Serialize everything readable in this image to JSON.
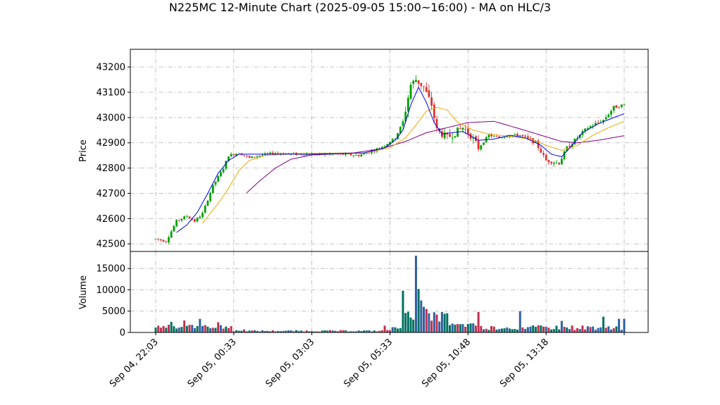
{
  "chart_data": {
    "type": "candlestick",
    "title": "N225MC 12-Minute Chart (2025-09-05 15:00~16:00) - MA on HLC/3",
    "price_axis": {
      "ylabel": "Price",
      "ylim": [
        42470,
        43270
      ],
      "ticks": [
        42500,
        42600,
        42700,
        42800,
        42900,
        43000,
        43100,
        43200
      ]
    },
    "volume_axis": {
      "ylabel": "Volume",
      "ylim": [
        0,
        19000
      ],
      "ticks": [
        0,
        5000,
        10000,
        15000
      ]
    },
    "x_axis": {
      "count": 180,
      "tick_labels": [
        {
          "index": 0,
          "label": "Sep 04, 22:03"
        },
        {
          "index": 30,
          "label": "Sep 05, 00:33"
        },
        {
          "index": 60,
          "label": "Sep 05, 03:03"
        },
        {
          "index": 90,
          "label": "Sep 05, 05:33"
        },
        {
          "index": 120,
          "label": "Sep 05, 10:48"
        },
        {
          "index": 150,
          "label": "Sep 05, 13:18"
        },
        {
          "index": 180,
          "label": ""
        }
      ]
    },
    "grid": true,
    "colors": {
      "up": "#00a000",
      "down": "#e03030",
      "ma_fast": "#0000ee",
      "ma_mid": "#f0a800",
      "ma_slow": "#800080",
      "vol_up": "#007060",
      "vol_down": "#c03050",
      "vol_other": "#3060a0"
    },
    "anchors": [
      [
        0,
        42520
      ],
      [
        4,
        42510
      ],
      [
        6,
        42550
      ],
      [
        8,
        42590
      ],
      [
        12,
        42610
      ],
      [
        15,
        42590
      ],
      [
        18,
        42620
      ],
      [
        22,
        42730
      ],
      [
        26,
        42800
      ],
      [
        28,
        42850
      ],
      [
        32,
        42860
      ],
      [
        36,
        42840
      ],
      [
        40,
        42850
      ],
      [
        46,
        42860
      ],
      [
        54,
        42855
      ],
      [
        62,
        42855
      ],
      [
        70,
        42855
      ],
      [
        78,
        42850
      ],
      [
        84,
        42870
      ],
      [
        88,
        42890
      ],
      [
        92,
        42920
      ],
      [
        95,
        42980
      ],
      [
        98,
        43130
      ],
      [
        100,
        43150
      ],
      [
        103,
        43120
      ],
      [
        106,
        43050
      ],
      [
        108,
        42950
      ],
      [
        112,
        42920
      ],
      [
        118,
        42960
      ],
      [
        121,
        42930
      ],
      [
        124,
        42880
      ],
      [
        128,
        42930
      ],
      [
        132,
        42920
      ],
      [
        136,
        42930
      ],
      [
        140,
        42930
      ],
      [
        146,
        42900
      ],
      [
        150,
        42830
      ],
      [
        155,
        42820
      ],
      [
        158,
        42880
      ],
      [
        162,
        42920
      ],
      [
        166,
        42960
      ],
      [
        172,
        42990
      ],
      [
        176,
        43040
      ],
      [
        180,
        43050
      ]
    ],
    "ma_fast": [
      [
        8,
        42545
      ],
      [
        12,
        42575
      ],
      [
        16,
        42625
      ],
      [
        20,
        42700
      ],
      [
        24,
        42780
      ],
      [
        28,
        42830
      ],
      [
        32,
        42855
      ],
      [
        40,
        42855
      ],
      [
        60,
        42855
      ],
      [
        80,
        42860
      ],
      [
        88,
        42880
      ],
      [
        92,
        42910
      ],
      [
        95,
        42950
      ],
      [
        98,
        43050
      ],
      [
        101,
        43120
      ],
      [
        104,
        43060
      ],
      [
        107,
        42980
      ],
      [
        110,
        42935
      ],
      [
        114,
        42940
      ],
      [
        118,
        42945
      ],
      [
        124,
        42910
      ],
      [
        130,
        42915
      ],
      [
        136,
        42930
      ],
      [
        142,
        42920
      ],
      [
        148,
        42890
      ],
      [
        152,
        42855
      ],
      [
        156,
        42845
      ],
      [
        160,
        42890
      ],
      [
        164,
        42940
      ],
      [
        170,
        42975
      ],
      [
        176,
        43000
      ],
      [
        180,
        43015
      ]
    ],
    "ma_mid": [
      [
        18,
        42582
      ],
      [
        24,
        42660
      ],
      [
        28,
        42720
      ],
      [
        32,
        42790
      ],
      [
        36,
        42830
      ],
      [
        42,
        42850
      ],
      [
        56,
        42858
      ],
      [
        80,
        42860
      ],
      [
        90,
        42880
      ],
      [
        96,
        42920
      ],
      [
        100,
        42970
      ],
      [
        104,
        43025
      ],
      [
        108,
        43040
      ],
      [
        112,
        43030
      ],
      [
        116,
        42980
      ],
      [
        122,
        42950
      ],
      [
        128,
        42935
      ],
      [
        136,
        42925
      ],
      [
        144,
        42915
      ],
      [
        150,
        42890
      ],
      [
        156,
        42870
      ],
      [
        162,
        42890
      ],
      [
        168,
        42930
      ],
      [
        174,
        42960
      ],
      [
        180,
        42985
      ]
    ],
    "ma_slow": [
      [
        35,
        42702
      ],
      [
        40,
        42750
      ],
      [
        46,
        42800
      ],
      [
        52,
        42835
      ],
      [
        60,
        42852
      ],
      [
        76,
        42860
      ],
      [
        86,
        42875
      ],
      [
        96,
        42905
      ],
      [
        104,
        42940
      ],
      [
        112,
        42960
      ],
      [
        120,
        42980
      ],
      [
        130,
        42985
      ],
      [
        140,
        42955
      ],
      [
        148,
        42930
      ],
      [
        156,
        42905
      ],
      [
        162,
        42900
      ],
      [
        170,
        42910
      ],
      [
        180,
        42928
      ]
    ],
    "volume_spikes": [
      [
        5,
        1800
      ],
      [
        6,
        2500
      ],
      [
        11,
        2800
      ],
      [
        17,
        3200
      ],
      [
        24,
        2400
      ],
      [
        34,
        700
      ],
      [
        88,
        1600
      ],
      [
        95,
        9800
      ],
      [
        98,
        3500
      ],
      [
        100,
        18000
      ],
      [
        101,
        10200
      ],
      [
        102,
        7500
      ],
      [
        103,
        6000
      ],
      [
        104,
        5500
      ],
      [
        105,
        4500
      ],
      [
        108,
        4200
      ],
      [
        110,
        4800
      ],
      [
        112,
        4500
      ],
      [
        124,
        4800
      ],
      [
        140,
        5000
      ],
      [
        156,
        2700
      ],
      [
        172,
        3700
      ],
      [
        178,
        3200
      ],
      [
        180,
        3200
      ]
    ]
  }
}
